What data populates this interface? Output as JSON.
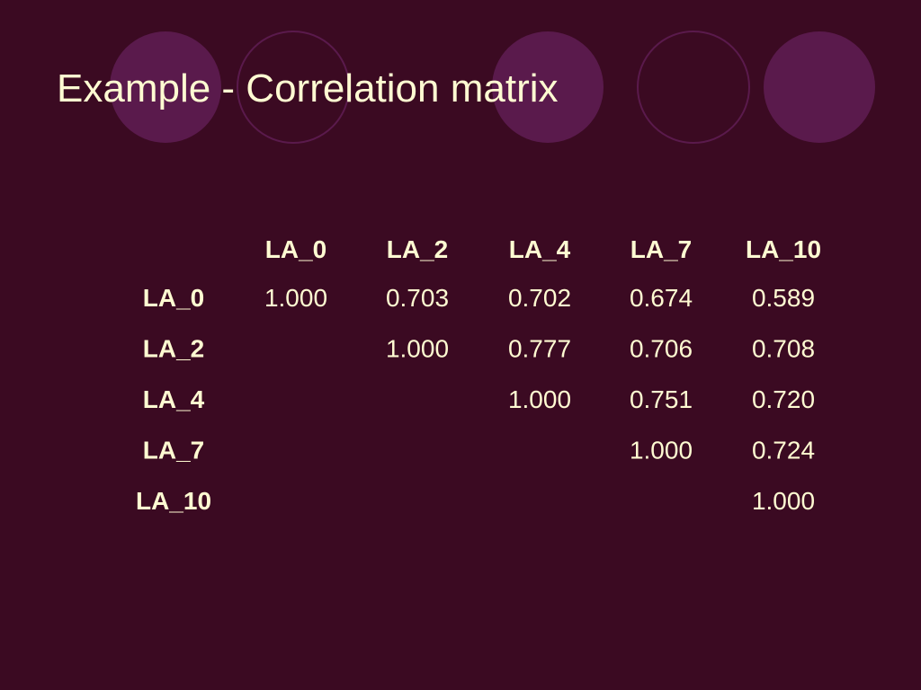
{
  "title": "Example - Correlation matrix",
  "table": {
    "header": [
      "LA_0",
      "LA_2",
      "LA_4",
      "LA_7",
      "LA_10"
    ],
    "rows": [
      {
        "label": "LA_0",
        "cells": [
          "1.000",
          "0.703",
          "0.702",
          "0.674",
          "0.589"
        ]
      },
      {
        "label": "LA_2",
        "cells": [
          null,
          "1.000",
          "0.777",
          "0.706",
          "0.708"
        ]
      },
      {
        "label": "LA_4",
        "cells": [
          null,
          null,
          "1.000",
          "0.751",
          "0.720"
        ]
      },
      {
        "label": "LA_7",
        "cells": [
          null,
          null,
          null,
          "1.000",
          "0.724"
        ]
      },
      {
        "label": "LA_10",
        "cells": [
          null,
          null,
          null,
          null,
          "1.000"
        ]
      }
    ]
  }
}
